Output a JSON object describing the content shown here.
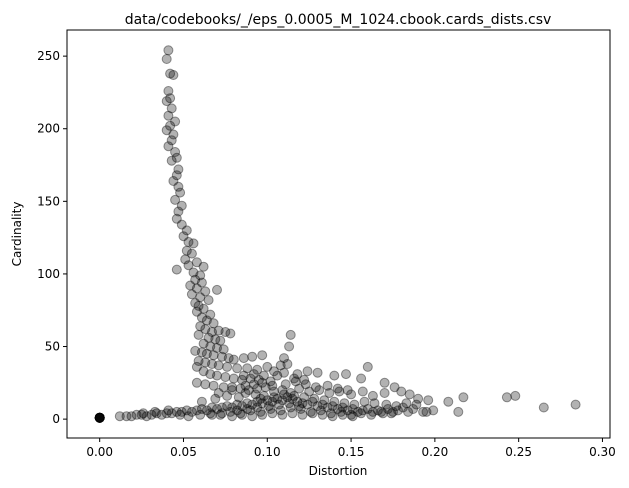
{
  "chart_data": {
    "type": "scatter",
    "title": "data/codebooks/_/eps_0.0005_M_1024.cbook.cards_dists.csv",
    "xlabel": "Distortion",
    "ylabel": "Cardinality",
    "xlim": [
      -0.0195,
      0.3045
    ],
    "ylim": [
      -13,
      268
    ],
    "x_ticks": [
      0.0,
      0.05,
      0.1,
      0.15,
      0.2,
      0.25,
      0.3
    ],
    "x_tick_labels": [
      "0.00",
      "0.05",
      "0.10",
      "0.15",
      "0.20",
      "0.25",
      "0.30"
    ],
    "y_ticks": [
      0,
      50,
      100,
      150,
      200,
      250
    ],
    "y_tick_labels": [
      "0",
      "50",
      "100",
      "150",
      "200",
      "250"
    ],
    "grid": false,
    "marker": {
      "shape": "circle",
      "color": "#000000",
      "alpha": 0.3
    },
    "points": [
      [
        0.0,
        1
      ],
      [
        0.0,
        1
      ],
      [
        0.0,
        1
      ],
      [
        0.0,
        1
      ],
      [
        0.0,
        1
      ],
      [
        0.0,
        1
      ],
      [
        0.0,
        1
      ],
      [
        0.0,
        1
      ],
      [
        0.0,
        1
      ],
      [
        0.0,
        1
      ],
      [
        0.041,
        254
      ],
      [
        0.04,
        248
      ],
      [
        0.042,
        238
      ],
      [
        0.044,
        237
      ],
      [
        0.041,
        226
      ],
      [
        0.042,
        221
      ],
      [
        0.04,
        219
      ],
      [
        0.043,
        214
      ],
      [
        0.041,
        209
      ],
      [
        0.045,
        205
      ],
      [
        0.042,
        202
      ],
      [
        0.04,
        199
      ],
      [
        0.044,
        196
      ],
      [
        0.043,
        192
      ],
      [
        0.041,
        188
      ],
      [
        0.045,
        184
      ],
      [
        0.046,
        180
      ],
      [
        0.043,
        178
      ],
      [
        0.047,
        172
      ],
      [
        0.046,
        168
      ],
      [
        0.044,
        164
      ],
      [
        0.047,
        160
      ],
      [
        0.048,
        156
      ],
      [
        0.045,
        151
      ],
      [
        0.049,
        147
      ],
      [
        0.047,
        143
      ],
      [
        0.046,
        138
      ],
      [
        0.049,
        134
      ],
      [
        0.052,
        130
      ],
      [
        0.05,
        126
      ],
      [
        0.053,
        122
      ],
      [
        0.056,
        121
      ],
      [
        0.052,
        116
      ],
      [
        0.055,
        114
      ],
      [
        0.051,
        110
      ],
      [
        0.058,
        108
      ],
      [
        0.053,
        106
      ],
      [
        0.046,
        103
      ],
      [
        0.056,
        101
      ],
      [
        0.06,
        99
      ],
      [
        0.062,
        105
      ],
      [
        0.057,
        96
      ],
      [
        0.061,
        94
      ],
      [
        0.054,
        92
      ],
      [
        0.058,
        90
      ],
      [
        0.063,
        88
      ],
      [
        0.07,
        89
      ],
      [
        0.055,
        86
      ],
      [
        0.06,
        84
      ],
      [
        0.065,
        82
      ],
      [
        0.057,
        80
      ],
      [
        0.059,
        78
      ],
      [
        0.062,
        76
      ],
      [
        0.058,
        74
      ],
      [
        0.066,
        72
      ],
      [
        0.061,
        70
      ],
      [
        0.064,
        68
      ],
      [
        0.068,
        66
      ],
      [
        0.06,
        64
      ],
      [
        0.063,
        62
      ],
      [
        0.067,
        60
      ],
      [
        0.071,
        61
      ],
      [
        0.075,
        60
      ],
      [
        0.078,
        59
      ],
      [
        0.059,
        58
      ],
      [
        0.065,
        56
      ],
      [
        0.069,
        55
      ],
      [
        0.072,
        54
      ],
      [
        0.062,
        52
      ],
      [
        0.066,
        50
      ],
      [
        0.07,
        49
      ],
      [
        0.074,
        48
      ],
      [
        0.057,
        47
      ],
      [
        0.061,
        46
      ],
      [
        0.064,
        45
      ],
      [
        0.068,
        44
      ],
      [
        0.073,
        43
      ],
      [
        0.077,
        42
      ],
      [
        0.08,
        41
      ],
      [
        0.086,
        42
      ],
      [
        0.091,
        43
      ],
      [
        0.097,
        44
      ],
      [
        0.059,
        40
      ],
      [
        0.063,
        39
      ],
      [
        0.067,
        38
      ],
      [
        0.071,
        37
      ],
      [
        0.076,
        36
      ],
      [
        0.082,
        35
      ],
      [
        0.088,
        35
      ],
      [
        0.094,
        34
      ],
      [
        0.1,
        36
      ],
      [
        0.108,
        37
      ],
      [
        0.112,
        38
      ],
      [
        0.114,
        58
      ],
      [
        0.113,
        50
      ],
      [
        0.11,
        42
      ],
      [
        0.058,
        36
      ],
      [
        0.062,
        33
      ],
      [
        0.066,
        31
      ],
      [
        0.07,
        30
      ],
      [
        0.075,
        29
      ],
      [
        0.08,
        28
      ],
      [
        0.085,
        27
      ],
      [
        0.09,
        28
      ],
      [
        0.095,
        27
      ],
      [
        0.102,
        26
      ],
      [
        0.106,
        30
      ],
      [
        0.118,
        31
      ],
      [
        0.124,
        33
      ],
      [
        0.13,
        32
      ],
      [
        0.14,
        30
      ],
      [
        0.147,
        31
      ],
      [
        0.16,
        36
      ],
      [
        0.156,
        28
      ],
      [
        0.17,
        25
      ],
      [
        0.058,
        25
      ],
      [
        0.063,
        24
      ],
      [
        0.068,
        23
      ],
      [
        0.074,
        22
      ],
      [
        0.079,
        22
      ],
      [
        0.084,
        21
      ],
      [
        0.089,
        20
      ],
      [
        0.094,
        21
      ],
      [
        0.099,
        22
      ],
      [
        0.104,
        19
      ],
      [
        0.109,
        20
      ],
      [
        0.114,
        18
      ],
      [
        0.119,
        21
      ],
      [
        0.125,
        19
      ],
      [
        0.131,
        20
      ],
      [
        0.137,
        18
      ],
      [
        0.143,
        19
      ],
      [
        0.15,
        17
      ],
      [
        0.157,
        19
      ],
      [
        0.163,
        16
      ],
      [
        0.17,
        18
      ],
      [
        0.176,
        22
      ],
      [
        0.18,
        19
      ],
      [
        0.185,
        17
      ],
      [
        0.19,
        14
      ],
      [
        0.196,
        13
      ],
      [
        0.208,
        12
      ],
      [
        0.217,
        15
      ],
      [
        0.243,
        15
      ],
      [
        0.248,
        16
      ],
      [
        0.265,
        8
      ],
      [
        0.284,
        10
      ],
      [
        0.214,
        5
      ],
      [
        0.199,
        6
      ],
      [
        0.193,
        5
      ],
      [
        0.012,
        2
      ],
      [
        0.016,
        2
      ],
      [
        0.019,
        2
      ],
      [
        0.022,
        3
      ],
      [
        0.025,
        3
      ],
      [
        0.028,
        2
      ],
      [
        0.031,
        3
      ],
      [
        0.034,
        4
      ],
      [
        0.037,
        3
      ],
      [
        0.04,
        4
      ],
      [
        0.043,
        4
      ],
      [
        0.046,
        5
      ],
      [
        0.049,
        5
      ],
      [
        0.052,
        6
      ],
      [
        0.055,
        5
      ],
      [
        0.058,
        6
      ],
      [
        0.061,
        7
      ],
      [
        0.064,
        6
      ],
      [
        0.067,
        8
      ],
      [
        0.07,
        7
      ],
      [
        0.073,
        8
      ],
      [
        0.076,
        9
      ],
      [
        0.079,
        8
      ],
      [
        0.082,
        10
      ],
      [
        0.085,
        9
      ],
      [
        0.088,
        11
      ],
      [
        0.091,
        10
      ],
      [
        0.094,
        12
      ],
      [
        0.097,
        11
      ],
      [
        0.1,
        13
      ],
      [
        0.103,
        12
      ],
      [
        0.106,
        14
      ],
      [
        0.109,
        13
      ],
      [
        0.112,
        15
      ],
      [
        0.115,
        14
      ],
      [
        0.118,
        12
      ],
      [
        0.121,
        11
      ],
      [
        0.124,
        10
      ],
      [
        0.127,
        12
      ],
      [
        0.13,
        9
      ],
      [
        0.133,
        10
      ],
      [
        0.136,
        8
      ],
      [
        0.139,
        9
      ],
      [
        0.142,
        7
      ],
      [
        0.145,
        8
      ],
      [
        0.148,
        6
      ],
      [
        0.151,
        7
      ],
      [
        0.154,
        5
      ],
      [
        0.157,
        6
      ],
      [
        0.16,
        7
      ],
      [
        0.163,
        5
      ],
      [
        0.166,
        6
      ],
      [
        0.169,
        4
      ],
      [
        0.172,
        7
      ],
      [
        0.175,
        5
      ],
      [
        0.178,
        6
      ],
      [
        0.181,
        8
      ],
      [
        0.184,
        5
      ],
      [
        0.187,
        7
      ],
      [
        0.195,
        5
      ],
      [
        0.026,
        4
      ],
      [
        0.033,
        5
      ],
      [
        0.041,
        6
      ],
      [
        0.048,
        3
      ],
      [
        0.053,
        2
      ],
      [
        0.06,
        3
      ],
      [
        0.066,
        4
      ],
      [
        0.072,
        3
      ],
      [
        0.078,
        5
      ],
      [
        0.084,
        4
      ],
      [
        0.09,
        6
      ],
      [
        0.096,
        5
      ],
      [
        0.102,
        7
      ],
      [
        0.108,
        6
      ],
      [
        0.114,
        8
      ],
      [
        0.12,
        7
      ],
      [
        0.126,
        5
      ],
      [
        0.132,
        6
      ],
      [
        0.138,
        4
      ],
      [
        0.144,
        5
      ],
      [
        0.15,
        3
      ],
      [
        0.156,
        4
      ],
      [
        0.162,
        3
      ],
      [
        0.168,
        5
      ],
      [
        0.174,
        4
      ],
      [
        0.061,
        12
      ],
      [
        0.069,
        14
      ],
      [
        0.076,
        16
      ],
      [
        0.083,
        15
      ],
      [
        0.087,
        18
      ],
      [
        0.093,
        17
      ],
      [
        0.098,
        16
      ],
      [
        0.104,
        15
      ],
      [
        0.11,
        17
      ],
      [
        0.116,
        16
      ],
      [
        0.122,
        15
      ],
      [
        0.128,
        14
      ],
      [
        0.134,
        13
      ],
      [
        0.14,
        12
      ],
      [
        0.146,
        11
      ],
      [
        0.152,
        10
      ],
      [
        0.158,
        12
      ],
      [
        0.164,
        11
      ],
      [
        0.171,
        10
      ],
      [
        0.177,
        9
      ],
      [
        0.183,
        11
      ],
      [
        0.189,
        10
      ],
      [
        0.071,
        18
      ],
      [
        0.079,
        20
      ],
      [
        0.087,
        23
      ],
      [
        0.092,
        24
      ],
      [
        0.097,
        25
      ],
      [
        0.103,
        23
      ],
      [
        0.111,
        24
      ],
      [
        0.117,
        26
      ],
      [
        0.123,
        24
      ],
      [
        0.129,
        22
      ],
      [
        0.136,
        23
      ],
      [
        0.142,
        21
      ],
      [
        0.148,
        20
      ],
      [
        0.086,
        30
      ],
      [
        0.092,
        31
      ],
      [
        0.098,
        30
      ],
      [
        0.104,
        33
      ],
      [
        0.11,
        32
      ],
      [
        0.116,
        28
      ],
      [
        0.122,
        27
      ],
      [
        0.096,
        14
      ],
      [
        0.101,
        9
      ],
      [
        0.107,
        10
      ],
      [
        0.113,
        11
      ],
      [
        0.119,
        9
      ],
      [
        0.082,
        6
      ],
      [
        0.088,
        7
      ],
      [
        0.094,
        8
      ],
      [
        0.067,
        3
      ],
      [
        0.073,
        4
      ],
      [
        0.079,
        2
      ],
      [
        0.085,
        3
      ],
      [
        0.091,
        2
      ],
      [
        0.097,
        3
      ],
      [
        0.103,
        4
      ],
      [
        0.109,
        3
      ],
      [
        0.115,
        4
      ],
      [
        0.121,
        3
      ],
      [
        0.127,
        4
      ],
      [
        0.133,
        3
      ],
      [
        0.139,
        2
      ],
      [
        0.145,
        3
      ],
      [
        0.151,
        2
      ]
    ]
  }
}
